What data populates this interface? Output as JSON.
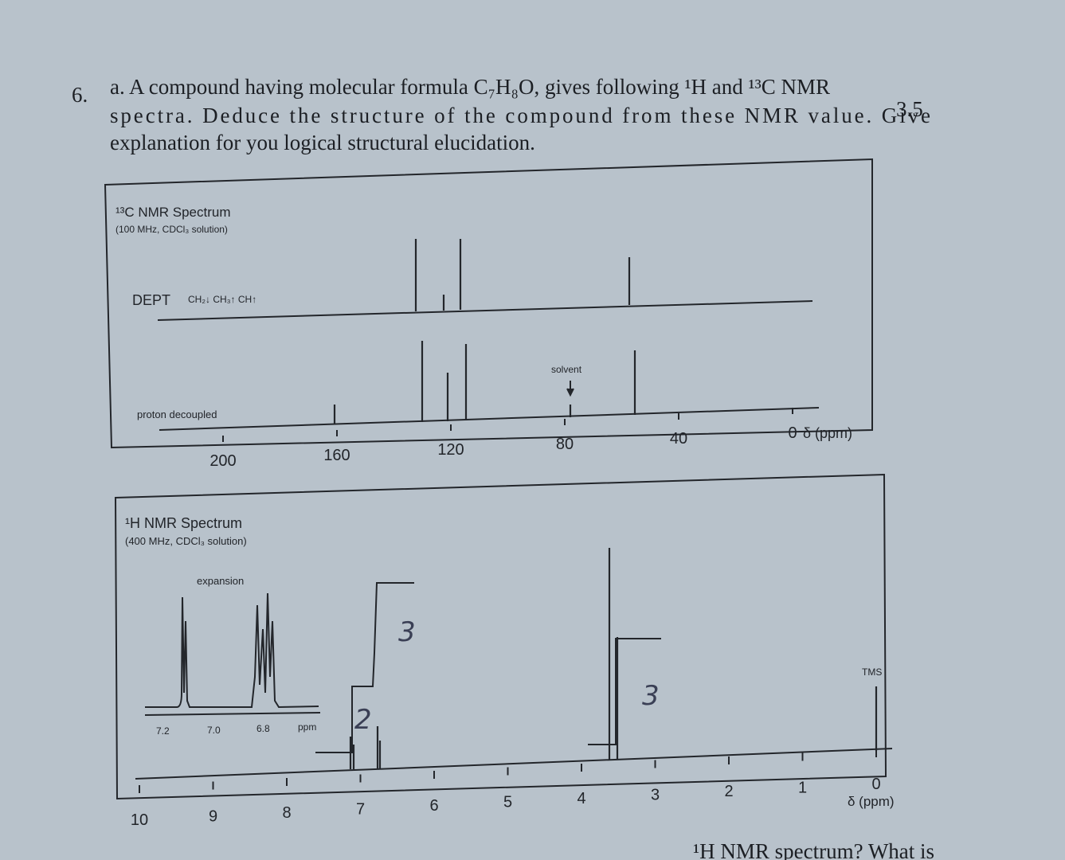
{
  "question": {
    "number": "6.",
    "lines": [
      "a. A compound having molecular formula C₇H₈O, gives following ¹H and ¹³C NMR",
      "spectra. Deduce the structure of the compound from these NMR value. Give",
      "explanation for you logical structural elucidation."
    ],
    "marks": "3.5"
  },
  "c13_spectrum": {
    "title": "¹³C NMR Spectrum",
    "conditions": "(100 MHz, CDCl₃ solution)",
    "dept_label": "DEPT",
    "dept_legend": "CH₂↓ CH₃↑ CH↑",
    "proton_decoupled": "proton decoupled",
    "solvent": "solvent",
    "axis_ticks": [
      "200",
      "160",
      "120",
      "80",
      "40",
      "0"
    ],
    "axis_label": "δ (ppm)"
  },
  "h1_spectrum": {
    "title": "¹H NMR Spectrum",
    "conditions": "(400 MHz, CDCl₃ solution)",
    "expansion": "expansion",
    "expansion_ticks": [
      "7.2",
      "7.0",
      "6.8"
    ],
    "expansion_unit": "ppm",
    "axis_ticks": [
      "10",
      "9",
      "8",
      "7",
      "6",
      "5",
      "4",
      "3",
      "2",
      "1",
      "0"
    ],
    "axis_label": "δ (ppm)",
    "tms": "TMS",
    "handwritten_integrals": [
      "3",
      "2",
      "3"
    ]
  },
  "footer_fragment": "¹H NMR spectrum? What is"
}
